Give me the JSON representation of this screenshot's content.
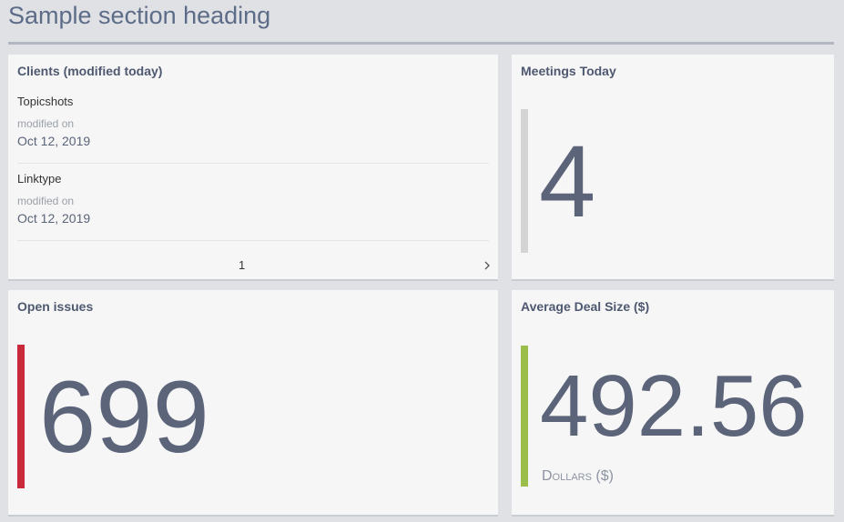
{
  "header": {
    "title": "Sample section heading"
  },
  "cards": [
    {
      "title": "Clients (modified today)",
      "items": [
        {
          "name": "Topicshots",
          "meta_label": "modified on",
          "date": "Oct 12, 2019"
        },
        {
          "name": "Linktype",
          "meta_label": "modified on",
          "date": "Oct 12, 2019"
        }
      ],
      "pagination": {
        "page": 1
      }
    },
    {
      "title": "Meetings Today",
      "value": 4
    },
    {
      "title": "Open issues",
      "value": 699
    },
    {
      "title": "Average Deal Size ($)",
      "value": 492.56,
      "unit": "Dollars ($)"
    }
  ]
}
